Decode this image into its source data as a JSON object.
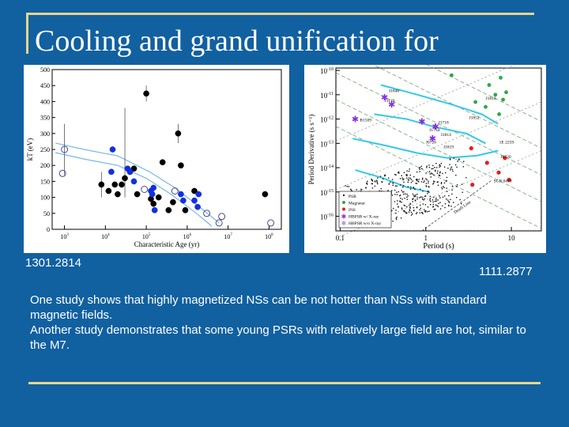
{
  "slide": {
    "title": "Cooling and grand unification for",
    "ref_left": "1301.2814",
    "ref_right": "1111.2877",
    "paragraphs": [
      "One study shows that highly magnetized NSs can be not hotter than NSs with standard magnetic fields.",
      "Another study demonstrates that some young PSRs with relatively large field are hot, similar to the M7."
    ]
  },
  "chart_data": [
    {
      "type": "scatter",
      "xlabel": "Characteristic Age (yr)",
      "ylabel": "kT (eV)",
      "xscale": "log",
      "xlim": [
        500,
        200000000
      ],
      "ylim": [
        0,
        500
      ],
      "x_ticks": [
        "10^3",
        "10^4",
        "10^5",
        "10^6",
        "10^7",
        "10^8"
      ],
      "y_ticks": [
        "0",
        "50",
        "100",
        "150",
        "200",
        "250",
        "300",
        "350",
        "400",
        "450",
        "500"
      ],
      "grid": false,
      "series": [
        {
          "color": "#000000",
          "marker": "filled-circle",
          "points": [
            {
              "x": 8000,
              "y": 140
            },
            {
              "x": 12000,
              "y": 120
            },
            {
              "x": 17000,
              "y": 140
            },
            {
              "x": 20000,
              "y": 110
            },
            {
              "x": 25000,
              "y": 140
            },
            {
              "x": 30000,
              "y": 160
            },
            {
              "x": 40000,
              "y": 180
            },
            {
              "x": 50000,
              "y": 190
            },
            {
              "x": 60000,
              "y": 110
            },
            {
              "x": 100000,
              "y": 425
            },
            {
              "x": 130000,
              "y": 95
            },
            {
              "x": 150000,
              "y": 80
            },
            {
              "x": 200000,
              "y": 100
            },
            {
              "x": 250000,
              "y": 210
            },
            {
              "x": 350000,
              "y": 60
            },
            {
              "x": 450000,
              "y": 85
            },
            {
              "x": 600000,
              "y": 300
            },
            {
              "x": 700000,
              "y": 200
            },
            {
              "x": 900000,
              "y": 60
            },
            {
              "x": 1500000,
              "y": 120
            },
            {
              "x": 80000000,
              "y": 110
            }
          ]
        },
        {
          "color": "#1030e0",
          "marker": "filled-circle",
          "points": [
            {
              "x": 15000,
              "y": 250
            },
            {
              "x": 14000,
              "y": 180
            },
            {
              "x": 35000,
              "y": 190
            },
            {
              "x": 40000,
              "y": 180
            },
            {
              "x": 50000,
              "y": 150
            },
            {
              "x": 130000,
              "y": 120
            },
            {
              "x": 140000,
              "y": 110
            },
            {
              "x": 150000,
              "y": 130
            },
            {
              "x": 160000,
              "y": 60
            },
            {
              "x": 700000,
              "y": 110
            },
            {
              "x": 800000,
              "y": 90
            },
            {
              "x": 1500000,
              "y": 90
            },
            {
              "x": 1800000,
              "y": 70
            },
            {
              "x": 1900000,
              "y": 110
            }
          ]
        },
        {
          "color": "#4a4a8a",
          "marker": "open-circle",
          "points": [
            {
              "x": 1000,
              "y": 250
            },
            {
              "x": 900,
              "y": 175
            },
            {
              "x": 90000,
              "y": 125
            },
            {
              "x": 500000,
              "y": 120
            },
            {
              "x": 3000000,
              "y": 50
            },
            {
              "x": 6000000,
              "y": 20
            },
            {
              "x": 7000000,
              "y": 40
            },
            {
              "x": 110000000,
              "y": 20
            }
          ]
        }
      ]
    },
    {
      "type": "scatter",
      "xlabel": "Period (s)",
      "ylabel": "Period Derivative (s s⁻¹)",
      "xscale": "log",
      "yscale": "log",
      "x_ticks": [
        "0.1",
        "1",
        "10"
      ],
      "y_ticks": [
        "10^-10",
        "10^-11",
        "10^-12",
        "10^-13",
        "10^-14",
        "10^-15",
        "10^-16"
      ],
      "legend_position": "bottom-left",
      "legend": [
        "PSR",
        "Magnetar",
        "INS",
        "HBPSR w/ X-ray",
        "HBPSR w/o X-ray"
      ],
      "annotations": [
        "J1846",
        "J1119",
        "J1718",
        "B1509",
        "J1734",
        "J0726",
        "J1814",
        "J1810",
        "J1852",
        "J1819",
        "J0720",
        "SGR 0418",
        "1E 2259",
        "Death Line"
      ]
    }
  ]
}
